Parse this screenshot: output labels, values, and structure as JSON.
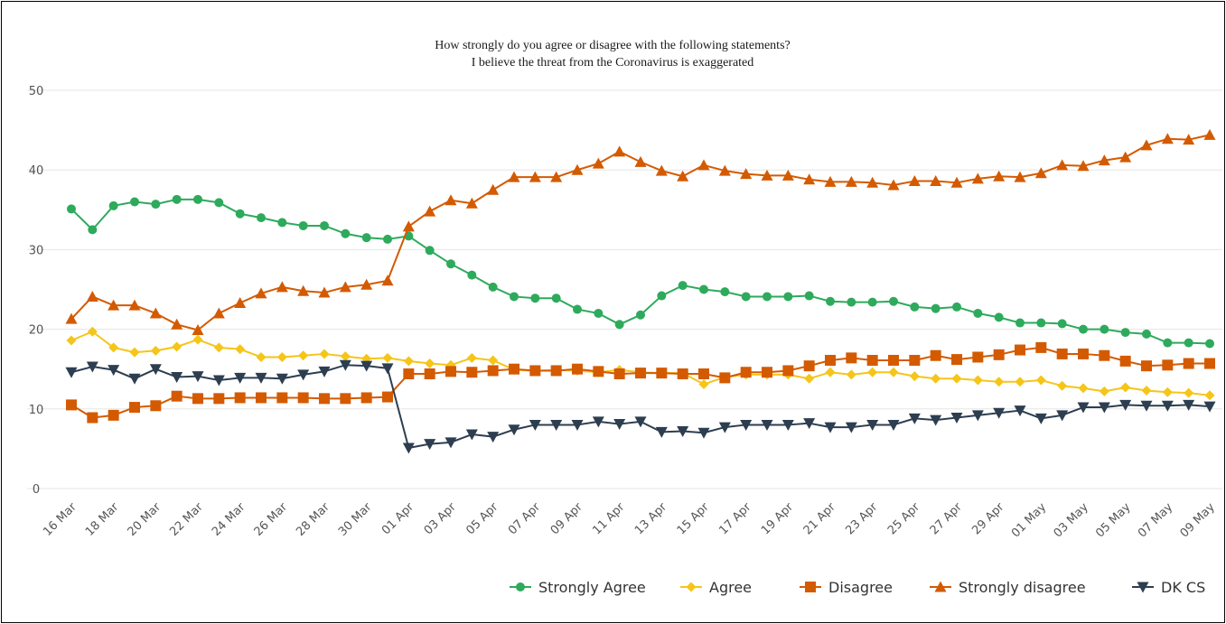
{
  "chart_data": {
    "type": "line",
    "title": "How strongly do you agree or disagree with the following statements?",
    "subtitle": "I believe the threat from the Coronavirus is exaggerated",
    "xlabel": "",
    "ylabel": "",
    "ylim": [
      0,
      50
    ],
    "yticks": [
      "0",
      "10",
      "20",
      "30",
      "40",
      "50"
    ],
    "grid": true,
    "legend_position": "bottom-right",
    "x": [
      "16 Mar",
      "17 Mar",
      "18 Mar",
      "19 Mar",
      "20 Mar",
      "21 Mar",
      "22 Mar",
      "23 Mar",
      "24 Mar",
      "25 Mar",
      "26 Mar",
      "27 Mar",
      "28 Mar",
      "29 Mar",
      "30 Mar",
      "31 Mar",
      "01 Apr",
      "02 Apr",
      "03 Apr",
      "04 Apr",
      "05 Apr",
      "06 Apr",
      "07 Apr",
      "08 Apr",
      "09 Apr",
      "10 Apr",
      "11 Apr",
      "12 Apr",
      "13 Apr",
      "14 Apr",
      "15 Apr",
      "16 Apr",
      "17 Apr",
      "18 Apr",
      "19 Apr",
      "20 Apr",
      "21 Apr",
      "22 Apr",
      "23 Apr",
      "24 Apr",
      "25 Apr",
      "26 Apr",
      "27 Apr",
      "28 Apr",
      "29 Apr",
      "30 Apr",
      "01 May",
      "02 May",
      "03 May",
      "04 May",
      "05 May",
      "06 May",
      "07 May",
      "08 May",
      "09 May"
    ],
    "x_tick_labels": [
      "16 Mar",
      "18 Mar",
      "20 Mar",
      "22 Mar",
      "24 Mar",
      "26 Mar",
      "28 Mar",
      "30 Mar",
      "01 Apr",
      "03 Apr",
      "05 Apr",
      "07 Apr",
      "09 Apr",
      "11 Apr",
      "13 Apr",
      "15 Apr",
      "17 Apr",
      "19 Apr",
      "21 Apr",
      "23 Apr",
      "25 Apr",
      "27 Apr",
      "29 Apr",
      "01 May",
      "03 May",
      "05 May",
      "07 May",
      "09 May"
    ],
    "series": [
      {
        "name": "Strongly Agree",
        "color": "#2eaa5c",
        "marker": "circle",
        "values": [
          35.1,
          32.5,
          35.5,
          36.0,
          35.7,
          36.3,
          36.3,
          35.9,
          34.5,
          34.0,
          33.4,
          33.0,
          33.0,
          32.0,
          31.5,
          31.3,
          31.7,
          29.9,
          28.2,
          26.8,
          25.3,
          24.1,
          23.9,
          23.9,
          22.5,
          22.0,
          20.6,
          21.8,
          24.2,
          25.5,
          25.0,
          24.7,
          24.1,
          24.1,
          24.1,
          24.2,
          23.5,
          23.4,
          23.4,
          23.5,
          22.8,
          22.6,
          22.8,
          22.0,
          21.5,
          20.8,
          20.8,
          20.7,
          20.0,
          20.0,
          19.6,
          19.4,
          18.3,
          18.3,
          18.2
        ]
      },
      {
        "name": "Agree",
        "color": "#f5c518",
        "marker": "diamond",
        "values": [
          18.6,
          19.7,
          17.7,
          17.1,
          17.3,
          17.8,
          18.7,
          17.7,
          17.5,
          16.5,
          16.5,
          16.7,
          16.9,
          16.6,
          16.3,
          16.4,
          16.0,
          15.7,
          15.5,
          16.4,
          16.1,
          14.9,
          14.8,
          14.9,
          14.8,
          14.6,
          14.9,
          14.6,
          14.5,
          14.5,
          13.1,
          14.0,
          14.3,
          14.3,
          14.3,
          13.8,
          14.6,
          14.3,
          14.6,
          14.6,
          14.1,
          13.8,
          13.8,
          13.6,
          13.4,
          13.4,
          13.6,
          12.9,
          12.6,
          12.2,
          12.7,
          12.3,
          12.1,
          12.0,
          11.7
        ]
      },
      {
        "name": "Disagree",
        "color": "#d45a00",
        "marker": "square",
        "values": [
          10.5,
          8.9,
          9.2,
          10.2,
          10.4,
          11.6,
          11.3,
          11.3,
          11.4,
          11.4,
          11.4,
          11.4,
          11.3,
          11.3,
          11.4,
          11.5,
          14.4,
          14.4,
          14.7,
          14.6,
          14.8,
          15.0,
          14.8,
          14.8,
          15.0,
          14.7,
          14.4,
          14.5,
          14.5,
          14.4,
          14.4,
          13.9,
          14.6,
          14.6,
          14.8,
          15.4,
          16.1,
          16.4,
          16.1,
          16.1,
          16.1,
          16.7,
          16.2,
          16.5,
          16.8,
          17.4,
          17.7,
          16.9,
          16.9,
          16.7,
          16.0,
          15.4,
          15.5,
          15.7,
          15.7
        ]
      },
      {
        "name": "Strongly disagree",
        "color": "#d45a00",
        "marker": "triangle",
        "values": [
          21.3,
          24.1,
          23.0,
          23.0,
          22.0,
          20.6,
          19.9,
          22.0,
          23.3,
          24.5,
          25.3,
          24.8,
          24.6,
          25.3,
          25.6,
          26.1,
          32.9,
          34.8,
          36.2,
          35.8,
          37.5,
          39.1,
          39.1,
          39.1,
          40.0,
          40.8,
          42.3,
          41.0,
          39.9,
          39.2,
          40.6,
          39.9,
          39.5,
          39.3,
          39.3,
          38.8,
          38.5,
          38.5,
          38.4,
          38.1,
          38.6,
          38.6,
          38.4,
          38.9,
          39.2,
          39.1,
          39.6,
          40.6,
          40.5,
          41.2,
          41.6,
          43.1,
          43.9,
          43.8,
          44.4
        ]
      },
      {
        "name": "DK CS",
        "color": "#2d3e50",
        "marker": "triangle-down",
        "values": [
          14.6,
          15.3,
          14.9,
          13.8,
          15.0,
          14.0,
          14.1,
          13.6,
          13.9,
          13.9,
          13.8,
          14.3,
          14.7,
          15.5,
          15.4,
          15.1,
          5.1,
          5.6,
          5.8,
          6.8,
          6.5,
          7.4,
          8.0,
          8.0,
          8.0,
          8.4,
          8.1,
          8.4,
          7.1,
          7.2,
          7.0,
          7.7,
          8.0,
          8.0,
          8.0,
          8.2,
          7.7,
          7.7,
          8.0,
          8.0,
          8.8,
          8.6,
          8.9,
          9.2,
          9.5,
          9.8,
          8.8,
          9.2,
          10.2,
          10.2,
          10.5,
          10.4,
          10.4,
          10.5,
          10.3
        ]
      }
    ]
  }
}
